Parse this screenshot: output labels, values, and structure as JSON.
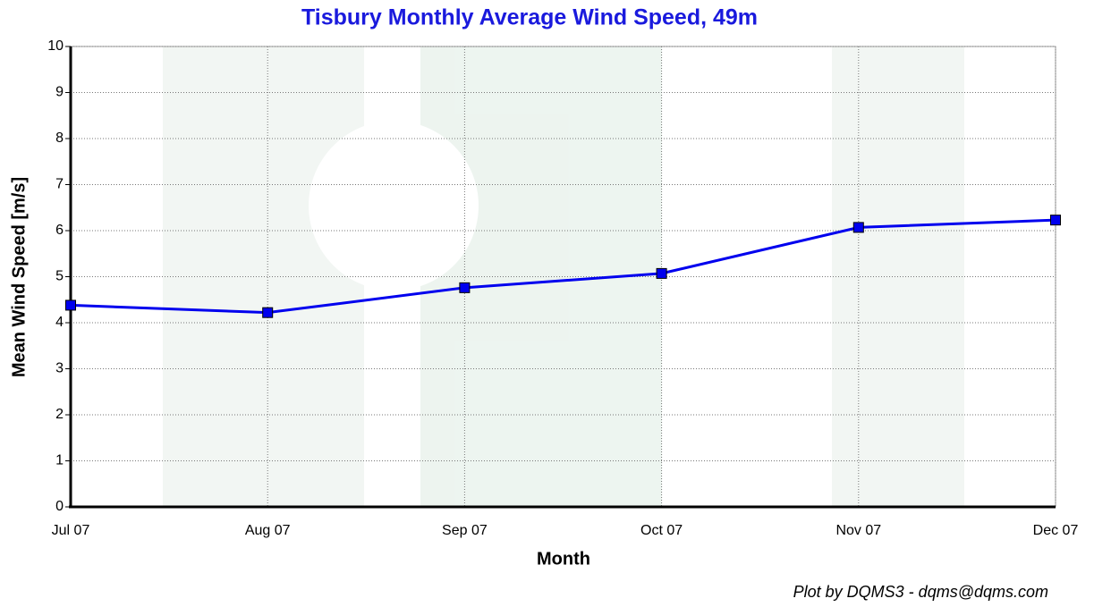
{
  "chart_data": {
    "type": "line",
    "title": "Tisbury Monthly Average Wind Speed, 49m",
    "xlabel": "Month",
    "ylabel": "Mean Wind Speed [m/s]",
    "annotation": "Plot by DQMS3 - dqms@dqms.com",
    "categories": [
      "Jul 07",
      "Aug 07",
      "Sep 07",
      "Oct 07",
      "Nov 07",
      "Dec 07"
    ],
    "values": [
      4.38,
      4.22,
      4.76,
      5.07,
      6.07,
      6.23
    ],
    "color": "#0000ee",
    "ylim": [
      0,
      10
    ],
    "yticks": [
      0,
      1,
      2,
      3,
      4,
      5,
      6,
      7,
      8,
      9,
      10
    ],
    "grid": true
  }
}
